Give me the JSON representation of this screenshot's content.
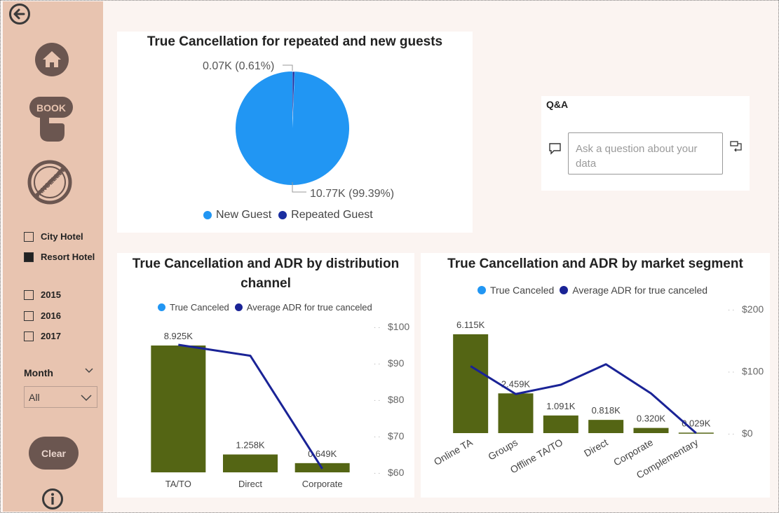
{
  "sidebar": {
    "back_icon": "arrow-left-circle-icon",
    "home_icon": "home-icon",
    "book_icon_text": "BOOK",
    "cancelled_icon_text": "CANCELLED",
    "hotel_filters": [
      {
        "label": "City Hotel",
        "checked": false
      },
      {
        "label": "Resort Hotel",
        "checked": true
      }
    ],
    "year_filters": [
      {
        "label": "2015",
        "checked": false
      },
      {
        "label": "2016",
        "checked": false
      },
      {
        "label": "2017",
        "checked": false
      }
    ],
    "month": {
      "title": "Month",
      "value": "All"
    },
    "clear_label": "Clear",
    "info_icon": "info-icon"
  },
  "colors": {
    "sidebar_bg": "#e8c4b0",
    "page_bg": "#fbf4f1",
    "new_guest": "#2196f3",
    "repeated_guest": "#1a2ea0",
    "bar": "#546514",
    "line": "#1a2396",
    "icon_brown": "#6b5650"
  },
  "pie_panel": {
    "title": "True Cancellation for repeated and new guests",
    "label_small": "0.07K (0.61%)",
    "label_large": "10.77K (99.39%)",
    "legend": [
      "New Guest",
      "Repeated Guest"
    ],
    "chart_data": {
      "type": "pie",
      "title": "True Cancellation for repeated and new guests",
      "categories": [
        "New Guest",
        "Repeated Guest"
      ],
      "values": [
        10.77,
        0.07
      ],
      "percentages": [
        99.39,
        0.61
      ],
      "unit": "K",
      "legend_position": "bottom"
    }
  },
  "qa_panel": {
    "title": "Q&A",
    "placeholder": "Ask a question about your data"
  },
  "channel_panel": {
    "title": "True Cancellation and ADR by distribution channel",
    "legend": [
      "True Canceled",
      "Average ADR for true canceled"
    ],
    "chart_data": {
      "type": "bar",
      "title": "True Cancellation and ADR by distribution channel",
      "categories": [
        "TA/TO",
        "Direct",
        "Corporate"
      ],
      "series": [
        {
          "name": "True Canceled",
          "values": [
            8.925,
            1.258,
            0.649
          ],
          "labels": [
            "8.925K",
            "1.258K",
            "0.649K"
          ]
        },
        {
          "name": "Average ADR for true canceled",
          "type": "line",
          "values": [
            95,
            92,
            61
          ]
        }
      ],
      "y2_ticks": [
        "$60",
        "$70",
        "$80",
        "$90",
        "$100"
      ],
      "y2lim": [
        60,
        100
      ],
      "legend_position": "top"
    }
  },
  "segment_panel": {
    "title": "True Cancellation and ADR by market segment",
    "legend": [
      "True Canceled",
      "Average ADR for true canceled"
    ],
    "chart_data": {
      "type": "bar",
      "title": "True Cancellation and ADR by market segment",
      "categories": [
        "Online TA",
        "Groups",
        "Offline TA/TO",
        "Direct",
        "Corporate",
        "Complementary"
      ],
      "series": [
        {
          "name": "True Canceled",
          "values": [
            6.115,
            2.459,
            1.091,
            0.818,
            0.32,
            0.029
          ],
          "labels": [
            "6.115K",
            "2.459K",
            "1.091K",
            "0.818K",
            "0.320K",
            "0.029K"
          ]
        },
        {
          "name": "Average ADR for true canceled",
          "type": "line",
          "values": [
            108,
            63,
            78,
            111,
            64,
            0
          ]
        }
      ],
      "y2_ticks": [
        "$0",
        "$100",
        "$200"
      ],
      "y2lim": [
        0,
        200
      ],
      "legend_position": "top"
    }
  }
}
